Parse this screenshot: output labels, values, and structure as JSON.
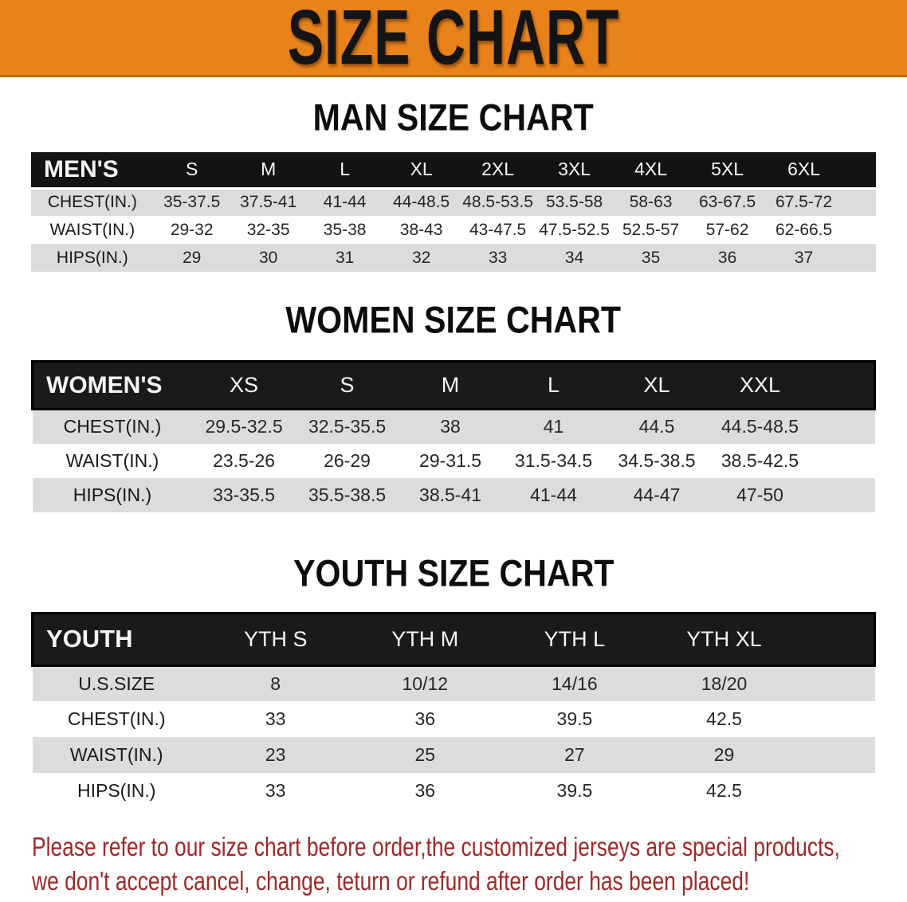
{
  "banner": {
    "title": "SIZE CHART",
    "background_color": "#e8821b",
    "border_color": "#c06a10",
    "text_color": "#141414"
  },
  "sections": {
    "men": {
      "heading": "MAN SIZE CHART",
      "table": {
        "label": "MEN'S",
        "columns": [
          "S",
          "M",
          "L",
          "XL",
          "2XL",
          "3XL",
          "4XL",
          "5XL",
          "6XL"
        ],
        "rows": [
          {
            "label": "CHEST(IN.)",
            "values": [
              "35-37.5",
              "37.5-41",
              "41-44",
              "44-48.5",
              "48.5-53.5",
              "53.5-58",
              "58-63",
              "63-67.5",
              "67.5-72"
            ]
          },
          {
            "label": "WAIST(IN.)",
            "values": [
              "29-32",
              "32-35",
              "35-38",
              "38-43",
              "43-47.5",
              "47.5-52.5",
              "52.5-57",
              "57-62",
              "62-66.5"
            ]
          },
          {
            "label": "HIPS(IN.)",
            "values": [
              "29",
              "30",
              "31",
              "32",
              "33",
              "34",
              "35",
              "36",
              "37"
            ]
          }
        ]
      }
    },
    "women": {
      "heading": "WOMEN SIZE CHART",
      "table": {
        "label": "WOMEN'S",
        "columns": [
          "XS",
          "S",
          "M",
          "L",
          "XL",
          "XXL"
        ],
        "rows": [
          {
            "label": "CHEST(IN.)",
            "values": [
              "29.5-32.5",
              "32.5-35.5",
              "38",
              "41",
              "44.5",
              "44.5-48.5"
            ]
          },
          {
            "label": "WAIST(IN.)",
            "values": [
              "23.5-26",
              "26-29",
              "29-31.5",
              "31.5-34.5",
              "34.5-38.5",
              "38.5-42.5"
            ]
          },
          {
            "label": "HIPS(IN.)",
            "values": [
              "33-35.5",
              "35.5-38.5",
              "38.5-41",
              "41-44",
              "44-47",
              "47-50"
            ]
          }
        ]
      }
    },
    "youth": {
      "heading": "YOUTH SIZE CHART",
      "table": {
        "label": "YOUTH",
        "columns": [
          "YTH S",
          "YTH M",
          "YTH L",
          "YTH XL"
        ],
        "rows": [
          {
            "label": "U.S.SIZE",
            "values": [
              "8",
              "10/12",
              "14/16",
              "18/20"
            ]
          },
          {
            "label": "CHEST(IN.)",
            "values": [
              "33",
              "36",
              "39.5",
              "42.5"
            ]
          },
          {
            "label": "WAIST(IN.)",
            "values": [
              "23",
              "25",
              "27",
              "29"
            ]
          },
          {
            "label": "HIPS(IN.)",
            "values": [
              "33",
              "36",
              "39.5",
              "42.5"
            ]
          }
        ]
      }
    }
  },
  "disclaimer": {
    "line1": "Please refer to our size chart before order,the customized jerseys are special products,",
    "line2": "we don't accept cancel, change, teturn or refund after order has been placed!",
    "text_color": "#a02828"
  },
  "colors": {
    "table_header_bar": "#141414",
    "table_stripe_gray": "#dcdcdc",
    "table_text": "#26262a"
  }
}
